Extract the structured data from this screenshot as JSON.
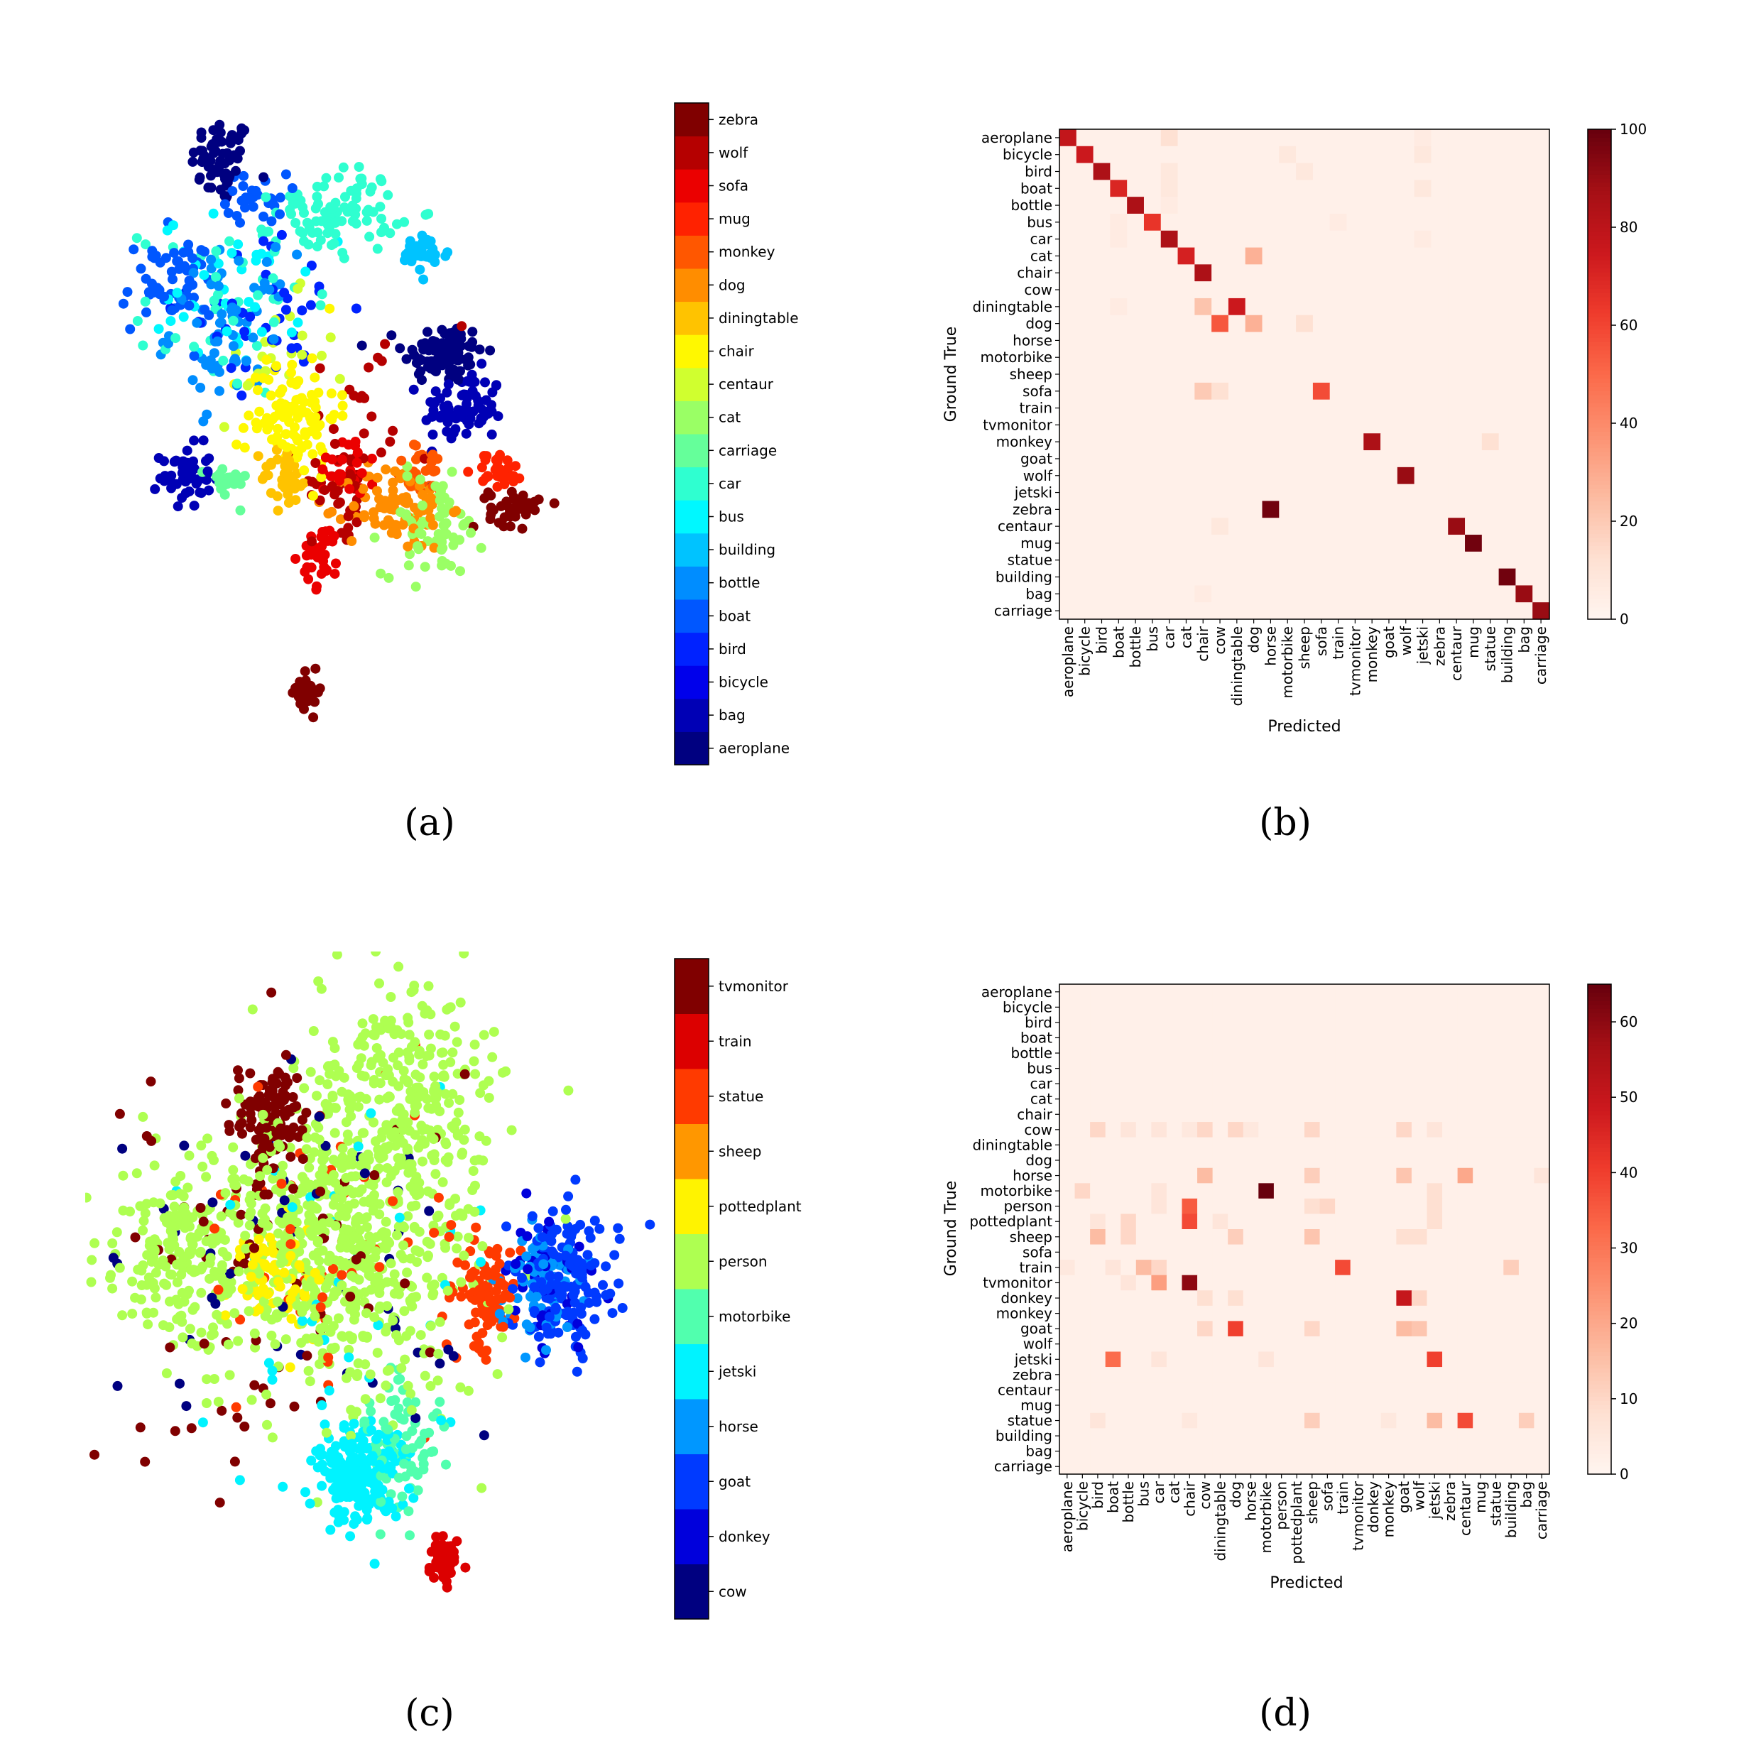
{
  "chart_data": [
    {
      "panel": "(a)",
      "type": "scatter",
      "colorbar_labels": [
        "aeroplane",
        "bag",
        "bicycle",
        "bird",
        "boat",
        "bottle",
        "building",
        "bus",
        "car",
        "carriage",
        "cat",
        "centaur",
        "chair",
        "diningtable",
        "dog",
        "monkey",
        "mug",
        "sofa",
        "wolf",
        "zebra"
      ],
      "clusters": [
        {
          "class": "aeroplane",
          "cx": 0.2,
          "cy": 0.94,
          "sx": 0.03,
          "sy": 0.035,
          "n": 60
        },
        {
          "class": "aeroplane",
          "cx": 0.64,
          "cy": 0.63,
          "sx": 0.04,
          "sy": 0.025,
          "n": 90
        },
        {
          "class": "bag",
          "cx": 0.68,
          "cy": 0.54,
          "sx": 0.04,
          "sy": 0.03,
          "n": 80
        },
        {
          "class": "bag",
          "cx": 0.13,
          "cy": 0.43,
          "sx": 0.025,
          "sy": 0.025,
          "n": 50
        },
        {
          "class": "bird",
          "cx": 0.3,
          "cy": 0.7,
          "sx": 0.08,
          "sy": 0.06,
          "n": 40
        },
        {
          "class": "boat",
          "cx": 0.27,
          "cy": 0.88,
          "sx": 0.03,
          "sy": 0.02,
          "n": 30
        },
        {
          "class": "boat",
          "cx": 0.1,
          "cy": 0.74,
          "sx": 0.05,
          "sy": 0.04,
          "n": 60
        },
        {
          "class": "bottle",
          "cx": 0.22,
          "cy": 0.67,
          "sx": 0.06,
          "sy": 0.06,
          "n": 70
        },
        {
          "class": "building",
          "cx": 0.6,
          "cy": 0.79,
          "sx": 0.025,
          "sy": 0.015,
          "n": 35
        },
        {
          "class": "bus",
          "cx": 0.22,
          "cy": 0.73,
          "sx": 0.07,
          "sy": 0.06,
          "n": 40
        },
        {
          "class": "car",
          "cx": 0.43,
          "cy": 0.86,
          "sx": 0.06,
          "sy": 0.035,
          "n": 90
        },
        {
          "class": "car",
          "cx": 0.2,
          "cy": 0.7,
          "sx": 0.08,
          "sy": 0.07,
          "n": 40
        },
        {
          "class": "carriage",
          "cx": 0.21,
          "cy": 0.42,
          "sx": 0.02,
          "sy": 0.015,
          "n": 20
        },
        {
          "class": "cat",
          "cx": 0.62,
          "cy": 0.35,
          "sx": 0.05,
          "sy": 0.04,
          "n": 70
        },
        {
          "class": "centaur",
          "cx": 0.3,
          "cy": 0.62,
          "sx": 0.06,
          "sy": 0.05,
          "n": 20
        },
        {
          "class": "chair",
          "cx": 0.34,
          "cy": 0.53,
          "sx": 0.045,
          "sy": 0.05,
          "n": 110
        },
        {
          "class": "diningtable",
          "cx": 0.33,
          "cy": 0.43,
          "sx": 0.025,
          "sy": 0.025,
          "n": 40
        },
        {
          "class": "dog",
          "cx": 0.55,
          "cy": 0.38,
          "sx": 0.05,
          "sy": 0.035,
          "n": 90
        },
        {
          "class": "monkey",
          "cx": 0.6,
          "cy": 0.44,
          "sx": 0.03,
          "sy": 0.02,
          "n": 30
        },
        {
          "class": "mug",
          "cx": 0.75,
          "cy": 0.44,
          "sx": 0.025,
          "sy": 0.015,
          "n": 30
        },
        {
          "class": "sofa",
          "cx": 0.4,
          "cy": 0.3,
          "sx": 0.02,
          "sy": 0.025,
          "n": 35
        },
        {
          "class": "sofa",
          "cx": 0.45,
          "cy": 0.45,
          "sx": 0.03,
          "sy": 0.03,
          "n": 30
        },
        {
          "class": "wolf",
          "cx": 0.44,
          "cy": 0.42,
          "sx": 0.03,
          "sy": 0.04,
          "n": 45
        },
        {
          "class": "wolf",
          "cx": 0.48,
          "cy": 0.55,
          "sx": 0.1,
          "sy": 0.08,
          "n": 20
        },
        {
          "class": "zebra",
          "cx": 0.78,
          "cy": 0.38,
          "sx": 0.025,
          "sy": 0.015,
          "n": 45
        },
        {
          "class": "zebra",
          "cx": 0.37,
          "cy": 0.08,
          "sx": 0.015,
          "sy": 0.015,
          "n": 30
        }
      ],
      "label": "(a)"
    },
    {
      "panel": "(b)",
      "type": "heatmap",
      "xlabel": "Predicted",
      "ylabel": "Ground True",
      "vmin": 0,
      "vmax": 100,
      "colorbar_ticks": [
        0,
        20,
        40,
        60,
        80,
        100
      ],
      "row_labels": [
        "aeroplane",
        "bicycle",
        "bird",
        "boat",
        "bottle",
        "bus",
        "car",
        "cat",
        "chair",
        "cow",
        "diningtable",
        "dog",
        "horse",
        "motorbike",
        "sheep",
        "sofa",
        "train",
        "tvmonitor",
        "monkey",
        "goat",
        "wolf",
        "jetski",
        "zebra",
        "centaur",
        "mug",
        "statue",
        "building",
        "bag",
        "carriage"
      ],
      "col_labels": [
        "aeroplane",
        "bicycle",
        "bird",
        "boat",
        "bottle",
        "bus",
        "car",
        "cat",
        "chair",
        "cow",
        "diningtable",
        "dog",
        "horse",
        "motorbike",
        "sheep",
        "sofa",
        "train",
        "tvmonitor",
        "monkey",
        "goat",
        "wolf",
        "jetski",
        "zebra",
        "centaur",
        "mug",
        "statue",
        "building",
        "bag",
        "carriage"
      ],
      "background_value": 3,
      "cells": [
        [
          0,
          0,
          78
        ],
        [
          0,
          6,
          12
        ],
        [
          0,
          21,
          6
        ],
        [
          1,
          1,
          75
        ],
        [
          1,
          13,
          8
        ],
        [
          1,
          21,
          8
        ],
        [
          2,
          2,
          85
        ],
        [
          2,
          14,
          8
        ],
        [
          2,
          6,
          8
        ],
        [
          3,
          3,
          70
        ],
        [
          3,
          6,
          8
        ],
        [
          3,
          21,
          8
        ],
        [
          4,
          4,
          85
        ],
        [
          4,
          6,
          6
        ],
        [
          5,
          5,
          65
        ],
        [
          5,
          3,
          6
        ],
        [
          5,
          16,
          6
        ],
        [
          6,
          6,
          85
        ],
        [
          6,
          3,
          6
        ],
        [
          6,
          21,
          6
        ],
        [
          7,
          7,
          72
        ],
        [
          7,
          11,
          28
        ],
        [
          8,
          8,
          85
        ],
        [
          10,
          8,
          22
        ],
        [
          10,
          10,
          75
        ],
        [
          10,
          3,
          6
        ],
        [
          11,
          9,
          55
        ],
        [
          11,
          11,
          28
        ],
        [
          11,
          14,
          12
        ],
        [
          15,
          8,
          20
        ],
        [
          15,
          9,
          12
        ],
        [
          15,
          15,
          58
        ],
        [
          18,
          18,
          85
        ],
        [
          18,
          25,
          12
        ],
        [
          20,
          20,
          90
        ],
        [
          22,
          12,
          98
        ],
        [
          23,
          9,
          8
        ],
        [
          23,
          23,
          90
        ],
        [
          24,
          24,
          98
        ],
        [
          26,
          26,
          98
        ],
        [
          27,
          8,
          6
        ],
        [
          27,
          27,
          90
        ],
        [
          28,
          28,
          90
        ]
      ],
      "label": "(b)"
    },
    {
      "panel": "(c)",
      "type": "scatter",
      "colorbar_labels": [
        "cow",
        "donkey",
        "goat",
        "horse",
        "jetski",
        "motorbike",
        "person",
        "pottedplant",
        "sheep",
        "statue",
        "train",
        "tvmonitor"
      ],
      "clusters": [
        {
          "class": "person",
          "cx": 0.55,
          "cy": 0.8,
          "sx": 0.09,
          "sy": 0.1,
          "n": 300
        },
        {
          "class": "person",
          "cx": 0.46,
          "cy": 0.55,
          "sx": 0.13,
          "sy": 0.13,
          "n": 450
        },
        {
          "class": "person",
          "cx": 0.12,
          "cy": 0.55,
          "sx": 0.07,
          "sy": 0.08,
          "n": 200
        },
        {
          "class": "person",
          "cx": 0.35,
          "cy": 0.62,
          "sx": 0.07,
          "sy": 0.08,
          "n": 120
        },
        {
          "class": "pottedplant",
          "cx": 0.3,
          "cy": 0.52,
          "sx": 0.04,
          "sy": 0.05,
          "n": 70
        },
        {
          "class": "tvmonitor",
          "cx": 0.3,
          "cy": 0.77,
          "sx": 0.03,
          "sy": 0.045,
          "n": 120
        },
        {
          "class": "tvmonitor",
          "cx": 0.3,
          "cy": 0.55,
          "sx": 0.16,
          "sy": 0.15,
          "n": 80
        },
        {
          "class": "jetski",
          "cx": 0.47,
          "cy": 0.2,
          "sx": 0.045,
          "sy": 0.04,
          "n": 200
        },
        {
          "class": "motorbike",
          "cx": 0.56,
          "cy": 0.26,
          "sx": 0.04,
          "sy": 0.05,
          "n": 80
        },
        {
          "class": "train",
          "cx": 0.64,
          "cy": 0.07,
          "sx": 0.015,
          "sy": 0.02,
          "n": 50
        },
        {
          "class": "statue",
          "cx": 0.72,
          "cy": 0.5,
          "sx": 0.03,
          "sy": 0.04,
          "n": 100
        },
        {
          "class": "goat",
          "cx": 0.88,
          "cy": 0.52,
          "sx": 0.05,
          "sy": 0.06,
          "n": 160
        },
        {
          "class": "horse",
          "cx": 0.83,
          "cy": 0.5,
          "sx": 0.04,
          "sy": 0.05,
          "n": 70
        },
        {
          "class": "donkey",
          "cx": 0.85,
          "cy": 0.52,
          "sx": 0.04,
          "sy": 0.06,
          "n": 40
        },
        {
          "class": "statue",
          "cx": 0.42,
          "cy": 0.55,
          "sx": 0.15,
          "sy": 0.15,
          "n": 50
        },
        {
          "class": "jetski",
          "cx": 0.45,
          "cy": 0.5,
          "sx": 0.15,
          "sy": 0.15,
          "n": 40
        },
        {
          "class": "cow",
          "cx": 0.4,
          "cy": 0.5,
          "sx": 0.2,
          "sy": 0.15,
          "n": 50
        }
      ],
      "label": "(c)"
    },
    {
      "panel": "(d)",
      "type": "heatmap",
      "xlabel": "Predicted",
      "ylabel": "Ground True",
      "vmin": 0,
      "vmax": 65,
      "colorbar_ticks": [
        0,
        10,
        20,
        30,
        40,
        50,
        60
      ],
      "row_labels": [
        "aeroplane",
        "bicycle",
        "bird",
        "boat",
        "bottle",
        "bus",
        "car",
        "cat",
        "chair",
        "cow",
        "diningtable",
        "dog",
        "horse",
        "motorbike",
        "person",
        "pottedplant",
        "sheep",
        "sofa",
        "train",
        "tvmonitor",
        "donkey",
        "monkey",
        "goat",
        "wolf",
        "jetski",
        "zebra",
        "centaur",
        "mug",
        "statue",
        "building",
        "bag",
        "carriage"
      ],
      "col_labels": [
        "aeroplane",
        "bicycle",
        "bird",
        "boat",
        "bottle",
        "bus",
        "car",
        "cat",
        "chair",
        "cow",
        "diningtable",
        "dog",
        "horse",
        "motorbike",
        "person",
        "pottedplant",
        "sheep",
        "sofa",
        "train",
        "tvmonitor",
        "donkey",
        "monkey",
        "goat",
        "wolf",
        "jetski",
        "zebra",
        "centaur",
        "mug",
        "statue",
        "building",
        "bag",
        "carriage"
      ],
      "background_value": 2,
      "cells": [
        [
          9,
          2,
          10
        ],
        [
          9,
          4,
          6
        ],
        [
          9,
          6,
          6
        ],
        [
          9,
          8,
          5
        ],
        [
          9,
          9,
          10
        ],
        [
          9,
          11,
          10
        ],
        [
          9,
          12,
          5
        ],
        [
          9,
          16,
          10
        ],
        [
          9,
          22,
          10
        ],
        [
          9,
          24,
          6
        ],
        [
          12,
          9,
          16
        ],
        [
          12,
          16,
          12
        ],
        [
          12,
          22,
          14
        ],
        [
          12,
          26,
          20
        ],
        [
          12,
          31,
          6
        ],
        [
          13,
          1,
          10
        ],
        [
          13,
          6,
          6
        ],
        [
          13,
          13,
          65
        ],
        [
          13,
          24,
          8
        ],
        [
          14,
          8,
          35
        ],
        [
          14,
          16,
          8
        ],
        [
          14,
          17,
          10
        ],
        [
          14,
          6,
          6
        ],
        [
          14,
          24,
          8
        ],
        [
          15,
          8,
          38
        ],
        [
          15,
          4,
          10
        ],
        [
          15,
          2,
          6
        ],
        [
          15,
          10,
          6
        ],
        [
          15,
          24,
          8
        ],
        [
          16,
          2,
          16
        ],
        [
          16,
          4,
          10
        ],
        [
          16,
          11,
          12
        ],
        [
          16,
          16,
          14
        ],
        [
          16,
          22,
          8
        ],
        [
          16,
          23,
          8
        ],
        [
          18,
          0,
          5
        ],
        [
          18,
          3,
          6
        ],
        [
          18,
          5,
          16
        ],
        [
          18,
          6,
          10
        ],
        [
          18,
          18,
          38
        ],
        [
          18,
          29,
          12
        ],
        [
          19,
          4,
          6
        ],
        [
          19,
          6,
          22
        ],
        [
          19,
          8,
          60
        ],
        [
          20,
          9,
          8
        ],
        [
          20,
          11,
          8
        ],
        [
          20,
          22,
          50
        ],
        [
          20,
          23,
          10
        ],
        [
          22,
          9,
          10
        ],
        [
          22,
          11,
          40
        ],
        [
          22,
          16,
          10
        ],
        [
          22,
          22,
          16
        ],
        [
          22,
          23,
          14
        ],
        [
          24,
          3,
          32
        ],
        [
          24,
          6,
          6
        ],
        [
          24,
          13,
          6
        ],
        [
          24,
          24,
          40
        ],
        [
          28,
          2,
          6
        ],
        [
          28,
          8,
          5
        ],
        [
          28,
          16,
          12
        ],
        [
          28,
          21,
          5
        ],
        [
          28,
          24,
          16
        ],
        [
          28,
          26,
          38
        ],
        [
          28,
          30,
          12
        ]
      ],
      "label": "(d)"
    }
  ]
}
